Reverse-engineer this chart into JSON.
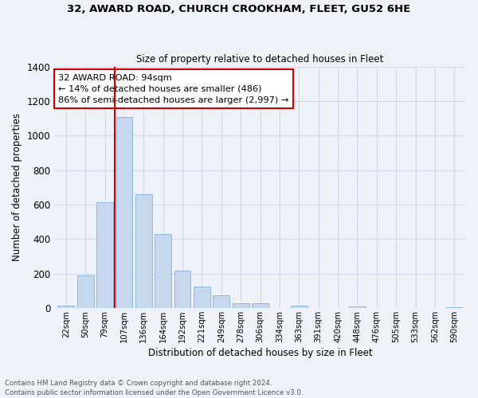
{
  "title1": "32, AWARD ROAD, CHURCH CROOKHAM, FLEET, GU52 6HE",
  "title2": "Size of property relative to detached houses in Fleet",
  "xlabel": "Distribution of detached houses by size in Fleet",
  "ylabel": "Number of detached properties",
  "bin_labels": [
    "22sqm",
    "50sqm",
    "79sqm",
    "107sqm",
    "136sqm",
    "164sqm",
    "192sqm",
    "221sqm",
    "249sqm",
    "278sqm",
    "306sqm",
    "334sqm",
    "363sqm",
    "391sqm",
    "420sqm",
    "448sqm",
    "476sqm",
    "505sqm",
    "533sqm",
    "562sqm",
    "590sqm"
  ],
  "bar_values": [
    12,
    190,
    615,
    1105,
    660,
    430,
    215,
    125,
    75,
    28,
    25,
    0,
    15,
    0,
    0,
    8,
    0,
    0,
    0,
    0,
    5
  ],
  "bar_color": "#c5d8ed",
  "bar_edge_color": "#90b8d8",
  "vline_color": "#cc0000",
  "annotation_text": "32 AWARD ROAD: 94sqm\n← 14% of detached houses are smaller (486)\n86% of semi-detached houses are larger (2,997) →",
  "annotation_box_color": "#ffffff",
  "annotation_box_edge": "#cc0000",
  "ylim": [
    0,
    1400
  ],
  "yticks": [
    0,
    200,
    400,
    600,
    800,
    1000,
    1200,
    1400
  ],
  "footer1": "Contains HM Land Registry data © Crown copyright and database right 2024.",
  "footer2": "Contains public sector information licensed under the Open Government Licence v3.0.",
  "background_color": "#eef2f8",
  "grid_color": "#d0d8e8"
}
